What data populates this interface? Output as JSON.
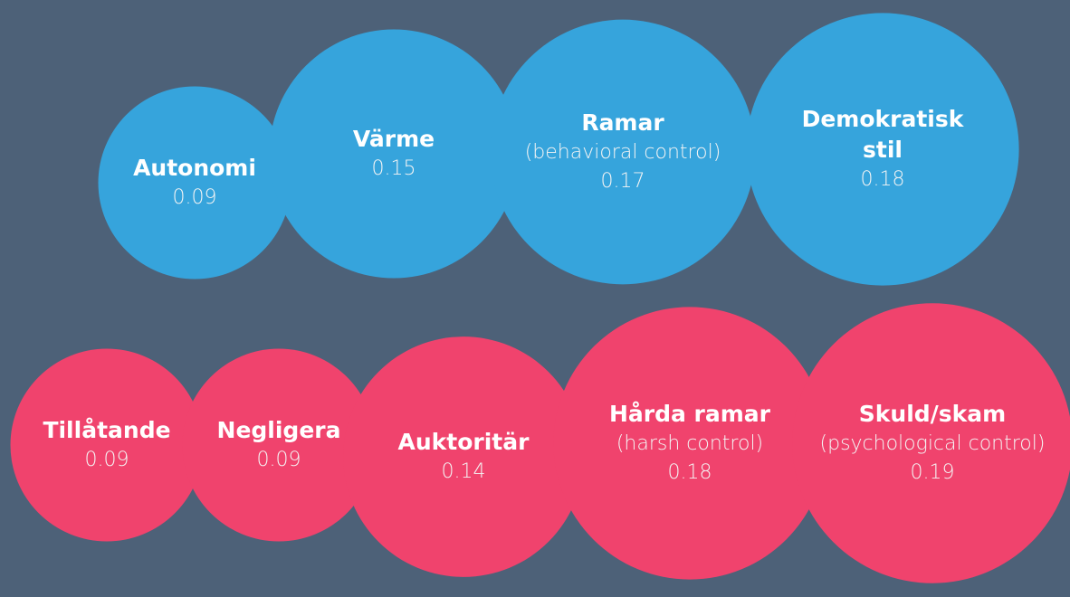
{
  "groups": [
    {
      "color": "#36a4dc",
      "items": [
        {
          "name": "Autonomi",
          "value": 0.09
        },
        {
          "name": "Värme",
          "value": 0.15
        },
        {
          "name": "Ramar",
          "subtitle": "(behavioral control)",
          "value": 0.17
        },
        {
          "name": "Demokratisk\nstil",
          "value": 0.18
        }
      ]
    },
    {
      "color": "#f0436d",
      "items": [
        {
          "name": "Tillåtande",
          "value": 0.09
        },
        {
          "name": "Negligera",
          "value": 0.09
        },
        {
          "name": "Auktoritär",
          "value": 0.14
        },
        {
          "name": "Hårda ramar",
          "subtitle": "(harsh control)",
          "value": 0.18
        },
        {
          "name": "Skuld/skam",
          "subtitle": "(psychological control)",
          "value": 0.19
        }
      ]
    }
  ]
}
